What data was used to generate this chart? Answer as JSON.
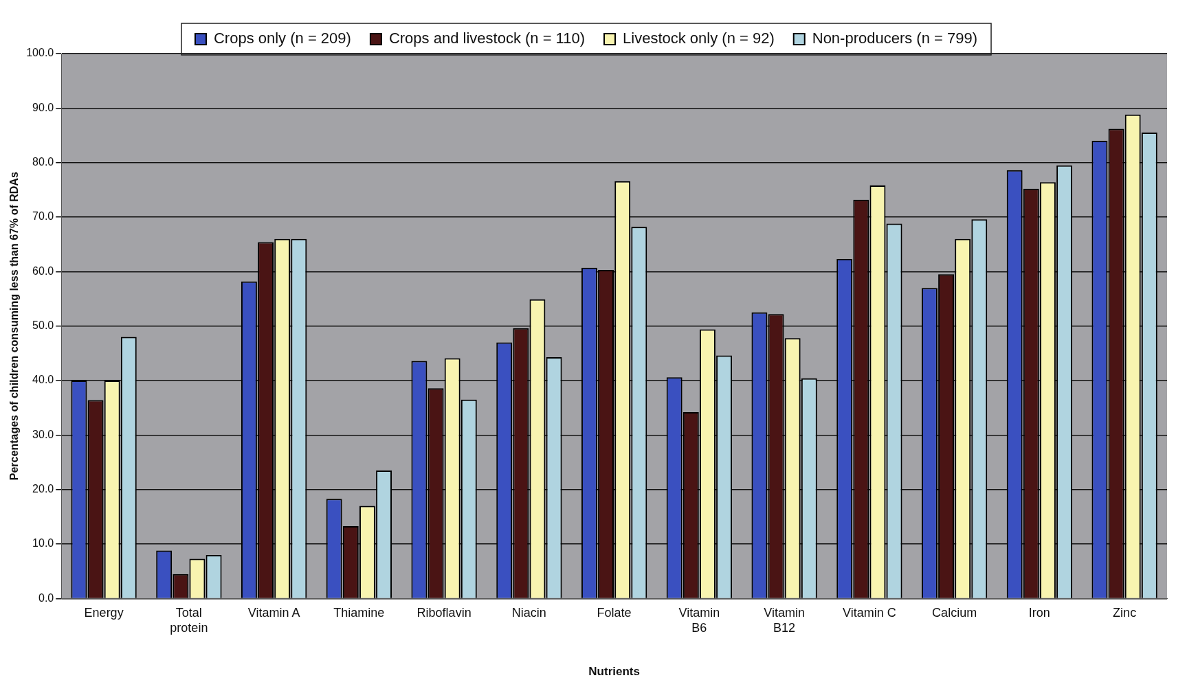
{
  "chart_data": {
    "type": "bar",
    "xlabel": "Nutrients",
    "ylabel": "Percentages of children consuming less than 67% of RDAs",
    "categories": [
      "Energy",
      "Total protein",
      "Vitamin A",
      "Thiamine",
      "Riboflavin",
      "Niacin",
      "Folate",
      "Vitamin B6",
      "Vitamin B12",
      "Vitamin C",
      "Calcium",
      "Iron",
      "Zinc"
    ],
    "series": [
      {
        "name": "Crops only (n = 209)",
        "color": "#3a50c0",
        "values": [
          40.0,
          8.8,
          58.2,
          18.3,
          43.6,
          47.0,
          60.7,
          40.6,
          52.5,
          62.3,
          57.0,
          78.6,
          84.0
        ]
      },
      {
        "name": "Crops and livestock (n = 110)",
        "color": "#4a1414",
        "values": [
          36.4,
          4.5,
          65.4,
          13.3,
          38.6,
          49.6,
          60.3,
          34.2,
          52.2,
          73.2,
          59.5,
          75.2,
          86.2
        ]
      },
      {
        "name": "Livestock only (n = 92)",
        "color": "#f8f4b0",
        "values": [
          40.0,
          7.3,
          66.0,
          17.0,
          44.1,
          54.9,
          76.6,
          49.4,
          47.8,
          75.8,
          66.0,
          76.4,
          88.8
        ]
      },
      {
        "name": "Non-producers (n = 799)",
        "color": "#b0d4e0",
        "values": [
          48.0,
          8.0,
          66.0,
          23.5,
          36.5,
          44.3,
          68.2,
          44.6,
          40.4,
          68.8,
          69.6,
          79.5,
          85.5
        ]
      }
    ],
    "ylim": [
      0,
      100
    ],
    "yticks": [
      {
        "value": 0,
        "label": "0.0"
      },
      {
        "value": 10,
        "label": "10.0"
      },
      {
        "value": 20,
        "label": "20.0"
      },
      {
        "value": 30,
        "label": "30.0"
      },
      {
        "value": 40,
        "label": "40.0"
      },
      {
        "value": 50,
        "label": "50.0"
      },
      {
        "value": 60,
        "label": "60.0"
      },
      {
        "value": 70,
        "label": "70.0"
      },
      {
        "value": 80,
        "label": "80.0"
      },
      {
        "value": 90,
        "label": "90.0"
      },
      {
        "value": 100,
        "label": "100.0"
      }
    ],
    "grid": "y",
    "legend": "top"
  }
}
